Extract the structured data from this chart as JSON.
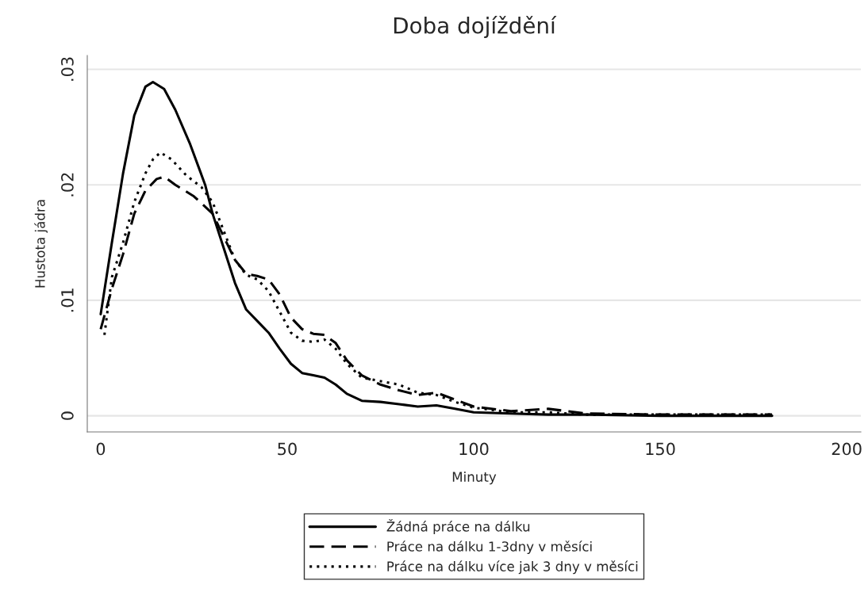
{
  "chart_data": {
    "type": "line",
    "title": "Doba dojíždění",
    "xlabel": "Minuty",
    "ylabel": "Hustota jádra",
    "xlim": [
      -3.6,
      203.8
    ],
    "ylim": [
      -0.0014,
      0.0312
    ],
    "xticks": [
      0,
      50,
      100,
      150,
      200
    ],
    "yticks": [
      {
        "value": 0,
        "label": "0"
      },
      {
        "value": 0.01,
        "label": ".01"
      },
      {
        "value": 0.02,
        "label": ".02"
      },
      {
        "value": 0.03,
        "label": ".03"
      }
    ],
    "grid": "y",
    "legend": "bottom",
    "marker": "none",
    "series": [
      {
        "name": "Žádná práce na dálku",
        "color": "#000000",
        "line_style": "solid",
        "x": [
          0,
          3,
          6,
          9,
          12,
          14,
          17,
          20,
          24,
          28,
          30,
          33,
          36,
          39,
          42,
          45,
          48,
          51,
          54,
          57,
          60,
          63,
          66,
          70,
          75,
          80,
          85,
          90,
          95,
          100,
          110,
          120,
          130,
          150,
          180
        ],
        "values": [
          0.0088,
          0.015,
          0.021,
          0.026,
          0.0285,
          0.0289,
          0.0283,
          0.0265,
          0.0235,
          0.02,
          0.0175,
          0.0145,
          0.0115,
          0.0092,
          0.0082,
          0.0072,
          0.0058,
          0.0045,
          0.0037,
          0.0035,
          0.0033,
          0.0027,
          0.0019,
          0.0013,
          0.0012,
          0.001,
          0.0008,
          0.0009,
          0.0006,
          0.0003,
          0.0002,
          0.0001,
          0.0001,
          0,
          0
        ]
      },
      {
        "name": "Práce na dálku 1-3dny v měsíci",
        "color": "#000000",
        "line_style": "dashed",
        "x": [
          0,
          3,
          6,
          9,
          12,
          15,
          17,
          20,
          25,
          30,
          33,
          36,
          39,
          42,
          45,
          48,
          51,
          54,
          57,
          60,
          63,
          66,
          70,
          75,
          80,
          85,
          90,
          95,
          100,
          110,
          120,
          130,
          150,
          180
        ],
        "values": [
          0.0075,
          0.011,
          0.014,
          0.0175,
          0.0195,
          0.0205,
          0.0207,
          0.02,
          0.019,
          0.0175,
          0.0155,
          0.0135,
          0.0123,
          0.0121,
          0.0118,
          0.0105,
          0.0085,
          0.0075,
          0.0071,
          0.007,
          0.0063,
          0.0048,
          0.0035,
          0.0027,
          0.0022,
          0.0018,
          0.002,
          0.0014,
          0.0008,
          0.0004,
          0.0006,
          0.0002,
          0.0001,
          0.0001
        ]
      },
      {
        "name": "Práce na dálku více jak 3 dny v měsíci",
        "color": "#000000",
        "line_style": "dotted",
        "x": [
          1,
          3,
          6,
          9,
          12,
          14,
          16,
          19,
          23,
          27,
          30,
          33,
          36,
          39,
          42,
          45,
          48,
          51,
          54,
          57,
          60,
          63,
          66,
          70,
          75,
          80,
          85,
          90,
          95,
          100,
          110,
          120,
          130,
          150,
          180
        ],
        "values": [
          0.007,
          0.012,
          0.015,
          0.0185,
          0.021,
          0.0222,
          0.0228,
          0.0222,
          0.0208,
          0.0198,
          0.0185,
          0.016,
          0.0135,
          0.0122,
          0.0118,
          0.0108,
          0.009,
          0.0072,
          0.0065,
          0.0064,
          0.0066,
          0.0058,
          0.0045,
          0.0033,
          0.003,
          0.0027,
          0.002,
          0.0018,
          0.0012,
          0.0007,
          0.0003,
          0.0003,
          0.0001,
          0.0001,
          0.0001
        ]
      }
    ]
  }
}
